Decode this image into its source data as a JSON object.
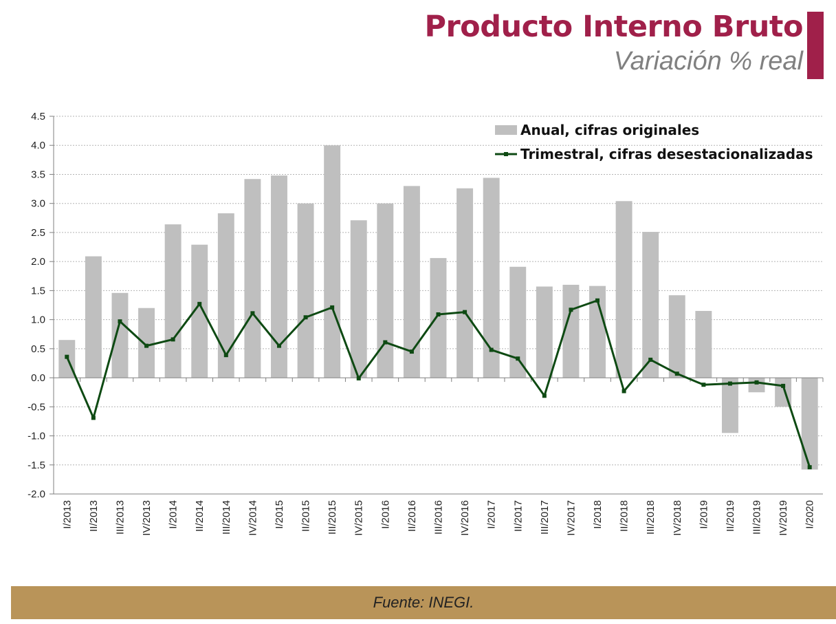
{
  "header": {
    "title": "Producto Interno Bruto",
    "subtitle": "Variación % real"
  },
  "footer": {
    "source": "Fuente: INEGI."
  },
  "colors": {
    "accent": "#a0204a",
    "bar": "#bfbfbf",
    "line": "#0e4a13",
    "footer": "#b99459"
  },
  "chart_data": {
    "type": "bar+line",
    "title": "Producto Interno Bruto",
    "subtitle": "Variación % real",
    "ylim": [
      -2.0,
      4.5
    ],
    "yticks": [
      "4.5",
      "4.0",
      "3.5",
      "3.0",
      "2.5",
      "2.0",
      "1.5",
      "1.0",
      "0.5",
      "0.0",
      "-0.5",
      "-1.0",
      "-1.5",
      "-2.0"
    ],
    "legend_position": "top-right",
    "grid": true,
    "categories": [
      "I/2013",
      "II/2013",
      "III/2013",
      "IV/2013",
      "I/2014",
      "II/2014",
      "III/2014",
      "IV/2014",
      "I/2015",
      "II/2015",
      "III/2015",
      "IV/2015",
      "I/2016",
      "II/2016",
      "III/2016",
      "IV/2016",
      "I/2017",
      "II/2017",
      "III/2017",
      "IV/2017",
      "I/2018",
      "II/2018",
      "III/2018",
      "IV/2018",
      "I/2019",
      "II/2019",
      "III/2019",
      "IV/2019",
      "I/2020"
    ],
    "series": [
      {
        "name": "Anual, cifras originales",
        "type": "bar",
        "values": [
          0.65,
          2.09,
          1.46,
          1.2,
          2.64,
          2.29,
          2.83,
          3.42,
          3.48,
          3.0,
          4.0,
          2.71,
          3.0,
          3.3,
          2.06,
          3.26,
          3.44,
          1.91,
          1.57,
          1.6,
          1.58,
          3.04,
          2.51,
          1.42,
          1.15,
          -0.95,
          -0.25,
          -0.5,
          -1.58
        ]
      },
      {
        "name": "Trimestral, cifras desestacionalizadas",
        "type": "line",
        "values": [
          0.36,
          -0.69,
          0.97,
          0.55,
          0.66,
          1.27,
          0.39,
          1.11,
          0.55,
          1.04,
          1.21,
          -0.01,
          0.61,
          0.45,
          1.09,
          1.13,
          0.48,
          0.33,
          -0.31,
          1.17,
          1.33,
          -0.23,
          0.31,
          0.07,
          -0.12,
          -0.1,
          -0.08,
          -0.14,
          -1.54
        ]
      }
    ]
  }
}
